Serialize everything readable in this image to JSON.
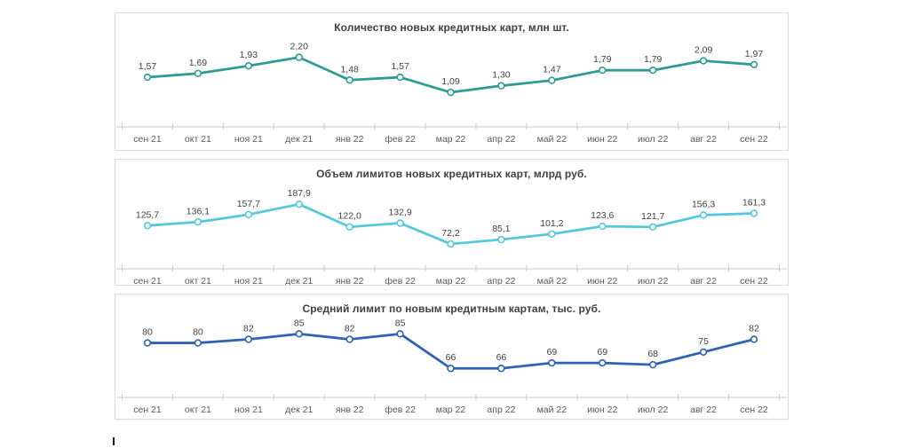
{
  "page": {
    "background": "#ffffff",
    "panel_border_color": "#d9d9d9",
    "axis_color": "#c9c9c9",
    "title_color": "#404040",
    "data_label_color": "#404040",
    "axis_label_color": "#595959"
  },
  "categories": [
    "сен 21",
    "окт 21",
    "ноя 21",
    "дек 21",
    "янв 22",
    "фев 22",
    "мар 22",
    "апр 22",
    "май 22",
    "июн 22",
    "июл 22",
    "авг 22",
    "сен 22"
  ],
  "chart_data": [
    {
      "type": "line",
      "title": "Количество новых кредитных карт, млн шт.",
      "categories": [
        "сен 21",
        "окт 21",
        "ноя 21",
        "дек 21",
        "янв 22",
        "фев 22",
        "мар 22",
        "апр 22",
        "май 22",
        "июн 22",
        "июл 22",
        "авг 22",
        "сен 22"
      ],
      "values": [
        1.57,
        1.69,
        1.93,
        2.2,
        1.48,
        1.57,
        1.09,
        1.3,
        1.47,
        1.79,
        1.79,
        2.09,
        1.97
      ],
      "labels": [
        "1,57",
        "1,69",
        "1,93",
        "2,20",
        "1,48",
        "1,57",
        "1,09",
        "1,30",
        "1,47",
        "1,79",
        "1,79",
        "2,09",
        "1,97"
      ],
      "line_color": "#2e9c94",
      "marker": "circle-white-fill",
      "ylim": [
        0,
        2.75
      ],
      "grid": false,
      "legend": "none"
    },
    {
      "type": "line",
      "title": "Объем лимитов новых кредитных карт, млрд руб.",
      "categories": [
        "сен 21",
        "окт 21",
        "ноя 21",
        "дек 21",
        "янв 22",
        "фев 22",
        "мар 22",
        "апр 22",
        "май 22",
        "июн 22",
        "июл 22",
        "авг 22",
        "сен 22"
      ],
      "values": [
        125.7,
        136.1,
        157.7,
        187.9,
        122.0,
        132.9,
        72.2,
        85.1,
        101.2,
        123.6,
        121.7,
        156.3,
        161.3
      ],
      "labels": [
        "125,7",
        "136,1",
        "157,7",
        "187,9",
        "122,0",
        "132,9",
        "72,2",
        "85,1",
        "101,2",
        "123,6",
        "121,7",
        "156,3",
        "161,3"
      ],
      "line_color": "#56c8dc",
      "marker": "circle-white-fill",
      "ylim": [
        0,
        240
      ],
      "grid": false,
      "legend": "none"
    },
    {
      "type": "line",
      "title": "Средний лимит по новым кредитным картам, тыс. руб.",
      "categories": [
        "сен 21",
        "окт 21",
        "ноя 21",
        "дек 21",
        "янв 22",
        "фев 22",
        "мар 22",
        "апр 22",
        "май 22",
        "июн 22",
        "июл 22",
        "авг 22",
        "сен 22"
      ],
      "values": [
        80,
        80,
        82,
        85,
        82,
        85,
        66,
        66,
        69,
        69,
        68,
        75,
        82
      ],
      "labels": [
        "80",
        "80",
        "82",
        "85",
        "82",
        "85",
        "66",
        "66",
        "69",
        "69",
        "68",
        "75",
        "82"
      ],
      "line_color": "#2e62b2",
      "marker": "circle-white-fill",
      "ylim": [
        50,
        92
      ],
      "grid": false,
      "legend": "none"
    }
  ]
}
